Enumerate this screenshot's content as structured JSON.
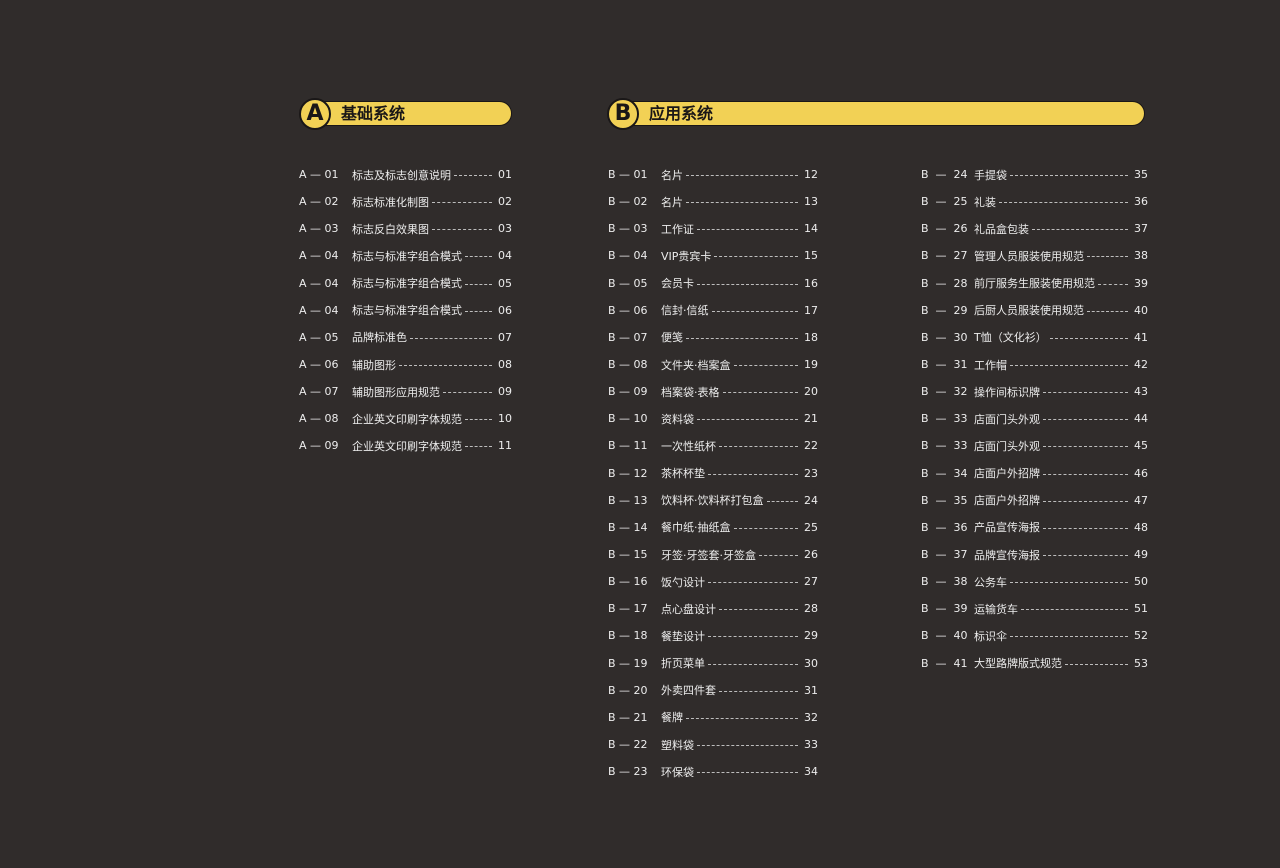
{
  "colors": {
    "background": "#302c2b",
    "accent": "#f2d155"
  },
  "sectionA": {
    "letter": "A",
    "title": "基础系统",
    "items": [
      {
        "code": "A — 01",
        "title": "标志及标志创意说明",
        "page": "01"
      },
      {
        "code": "A — 02",
        "title": "标志标准化制图",
        "page": "02"
      },
      {
        "code": "A — 03",
        "title": "标志反白效果图",
        "page": "03"
      },
      {
        "code": "A — 04",
        "title": "标志与标准字组合模式",
        "page": "04"
      },
      {
        "code": "A — 04",
        "title": "标志与标准字组合模式",
        "page": "05"
      },
      {
        "code": "A — 04",
        "title": "标志与标准字组合模式",
        "page": "06"
      },
      {
        "code": "A — 05",
        "title": "品牌标准色",
        "page": "07"
      },
      {
        "code": "A — 06",
        "title": "辅助图形",
        "page": "08"
      },
      {
        "code": "A — 07",
        "title": "辅助图形应用规范",
        "page": "09"
      },
      {
        "code": "A — 08",
        "title": "企业英文印刷字体规范",
        "page": "10"
      },
      {
        "code": "A — 09",
        "title": "企业英文印刷字体规范",
        "page": "11"
      }
    ]
  },
  "sectionB": {
    "letter": "B",
    "title": "应用系统",
    "items": [
      {
        "code": "B — 01",
        "title": "名片",
        "page": "12"
      },
      {
        "code": "B — 02",
        "title": "名片",
        "page": "13"
      },
      {
        "code": "B — 03",
        "title": "工作证",
        "page": "14"
      },
      {
        "code": "B — 04",
        "title": "VIP贵宾卡",
        "page": "15"
      },
      {
        "code": "B — 05",
        "title": "会员卡",
        "page": "16"
      },
      {
        "code": "B — 06",
        "title": "信封·信纸",
        "page": "17"
      },
      {
        "code": "B — 07",
        "title": "便笺",
        "page": "18"
      },
      {
        "code": "B — 08",
        "title": "文件夹·档案盒",
        "page": "19"
      },
      {
        "code": "B — 09",
        "title": "档案袋·表格",
        "page": "20"
      },
      {
        "code": "B — 10",
        "title": "资料袋",
        "page": "21"
      },
      {
        "code": "B — 11",
        "title": "一次性纸杯",
        "page": "22"
      },
      {
        "code": "B — 12",
        "title": "茶杯杯垫",
        "page": "23"
      },
      {
        "code": "B — 13",
        "title": "饮料杯·饮料杯打包盒",
        "page": "24"
      },
      {
        "code": "B — 14",
        "title": "餐巾纸·抽纸盒",
        "page": "25"
      },
      {
        "code": "B — 15",
        "title": "牙签·牙签套·牙签盒",
        "page": "26"
      },
      {
        "code": "B — 16",
        "title": "饭勺设计",
        "page": "27"
      },
      {
        "code": "B — 17",
        "title": "点心盘设计",
        "page": "28"
      },
      {
        "code": "B — 18",
        "title": "餐垫设计",
        "page": "29"
      },
      {
        "code": "B — 19",
        "title": "折页菜单",
        "page": "30"
      },
      {
        "code": "B — 20",
        "title": "外卖四件套",
        "page": "31"
      },
      {
        "code": "B — 21",
        "title": "餐牌",
        "page": "32"
      },
      {
        "code": "B — 22",
        "title": "塑料袋",
        "page": "33"
      },
      {
        "code": "B — 23",
        "title": "环保袋",
        "page": "34"
      },
      {
        "code": "B  —  24",
        "title": "手提袋",
        "page": "35"
      },
      {
        "code": "B  —  25",
        "title": "礼装",
        "page": "36"
      },
      {
        "code": "B  —  26",
        "title": "礼品盒包装",
        "page": "37"
      },
      {
        "code": "B  —  27",
        "title": "管理人员服装使用规范",
        "page": "38"
      },
      {
        "code": "B  —  28",
        "title": "前厅服务生服装使用规范",
        "page": "39"
      },
      {
        "code": "B  —  29",
        "title": "后厨人员服装使用规范",
        "page": "40"
      },
      {
        "code": "B  —  30",
        "title": "T恤（文化衫）",
        "page": "41"
      },
      {
        "code": "B  —  31",
        "title": "工作帽",
        "page": "42"
      },
      {
        "code": "B  —  32",
        "title": "操作间标识牌",
        "page": "43"
      },
      {
        "code": "B  —  33",
        "title": "店面门头外观",
        "page": "44"
      },
      {
        "code": "B  —  33",
        "title": "店面门头外观",
        "page": "45"
      },
      {
        "code": "B  —  34",
        "title": "店面户外招牌",
        "page": "46"
      },
      {
        "code": "B  —  35",
        "title": "店面户外招牌",
        "page": "47"
      },
      {
        "code": "B  —  36",
        "title": "产品宣传海报",
        "page": "48"
      },
      {
        "code": "B  —  37",
        "title": "品牌宣传海报",
        "page": "49"
      },
      {
        "code": "B  —  38",
        "title": "公务车",
        "page": "50"
      },
      {
        "code": "B  —  39",
        "title": "运输货车",
        "page": "51"
      },
      {
        "code": "B  —  40",
        "title": "标识伞",
        "page": "52"
      },
      {
        "code": "B  —  41",
        "title": "大型路牌版式规范",
        "page": "53"
      }
    ]
  }
}
